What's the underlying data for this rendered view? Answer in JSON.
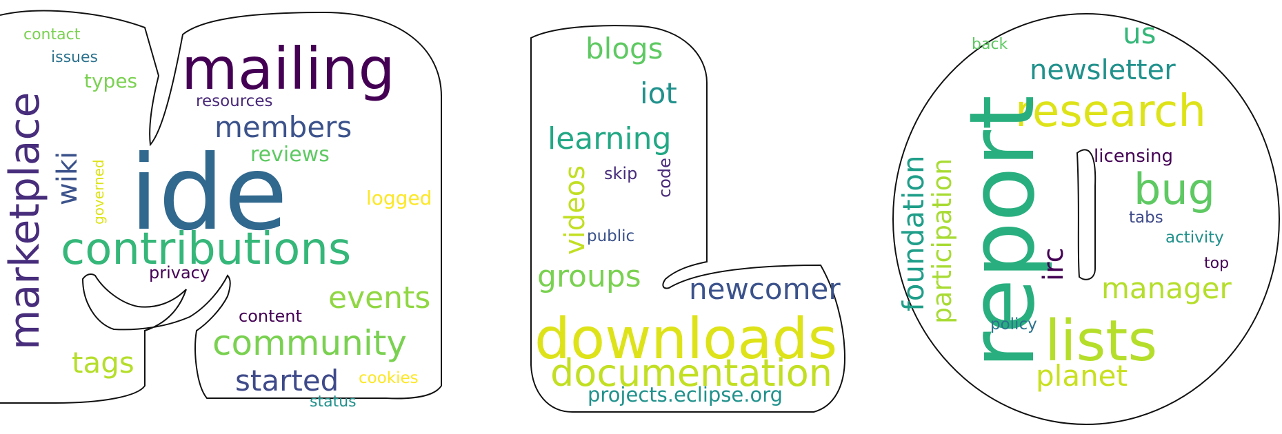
{
  "words": [
    {
      "text": "contact",
      "color": "#7ad151"
    },
    {
      "text": "issues",
      "color": "#2c728e"
    },
    {
      "text": "types",
      "color": "#7ad151"
    },
    {
      "text": "mailing",
      "color": "#440154"
    },
    {
      "text": "resources",
      "color": "#482878"
    },
    {
      "text": "members",
      "color": "#3b528b"
    },
    {
      "text": "reviews",
      "color": "#5ec962"
    },
    {
      "text": "marketplace",
      "color": "#472d7b"
    },
    {
      "text": "wiki",
      "color": "#3b528b"
    },
    {
      "text": "governed",
      "color": "#dde318"
    },
    {
      "text": "ide",
      "color": "#31688e"
    },
    {
      "text": "logged",
      "color": "#fde725"
    },
    {
      "text": "contributions",
      "color": "#35b779"
    },
    {
      "text": "privacy",
      "color": "#440154"
    },
    {
      "text": "events",
      "color": "#90d743"
    },
    {
      "text": "content",
      "color": "#440154"
    },
    {
      "text": "community",
      "color": "#7ad151"
    },
    {
      "text": "tags",
      "color": "#b5de2b"
    },
    {
      "text": "started",
      "color": "#3e4a89"
    },
    {
      "text": "cookies",
      "color": "#fde725"
    },
    {
      "text": "status",
      "color": "#21918c"
    },
    {
      "text": "blogs",
      "color": "#5ec962"
    },
    {
      "text": "iot",
      "color": "#21918c"
    },
    {
      "text": "learning",
      "color": "#22a884"
    },
    {
      "text": "videos",
      "color": "#c2df23"
    },
    {
      "text": "skip",
      "color": "#472d7b"
    },
    {
      "text": "code",
      "color": "#482878"
    },
    {
      "text": "public",
      "color": "#3b528b"
    },
    {
      "text": "groups",
      "color": "#7ad151"
    },
    {
      "text": "newcomer",
      "color": "#3b528b"
    },
    {
      "text": "downloads",
      "color": "#dde318"
    },
    {
      "text": "documentation",
      "color": "#c2df23"
    },
    {
      "text": "projects.eclipse.org",
      "color": "#21918c"
    },
    {
      "text": "back",
      "color": "#5ec962"
    },
    {
      "text": "us",
      "color": "#35b779"
    },
    {
      "text": "newsletter",
      "color": "#21918c"
    },
    {
      "text": "research",
      "color": "#dde318"
    },
    {
      "text": "report",
      "color": "#29af7f"
    },
    {
      "text": "foundation",
      "color": "#1f9e89"
    },
    {
      "text": "participation",
      "color": "#a8db34"
    },
    {
      "text": "licensing",
      "color": "#440154"
    },
    {
      "text": "bug",
      "color": "#5ec962"
    },
    {
      "text": "tabs",
      "color": "#3e4a89"
    },
    {
      "text": "activity",
      "color": "#21918c"
    },
    {
      "text": "irc",
      "color": "#440154"
    },
    {
      "text": "top",
      "color": "#440154"
    },
    {
      "text": "manager",
      "color": "#b5de2b"
    },
    {
      "text": "policy",
      "color": "#2c728e"
    },
    {
      "text": "lists",
      "color": "#b5de2b"
    },
    {
      "text": "planet",
      "color": "#c8e020"
    }
  ]
}
